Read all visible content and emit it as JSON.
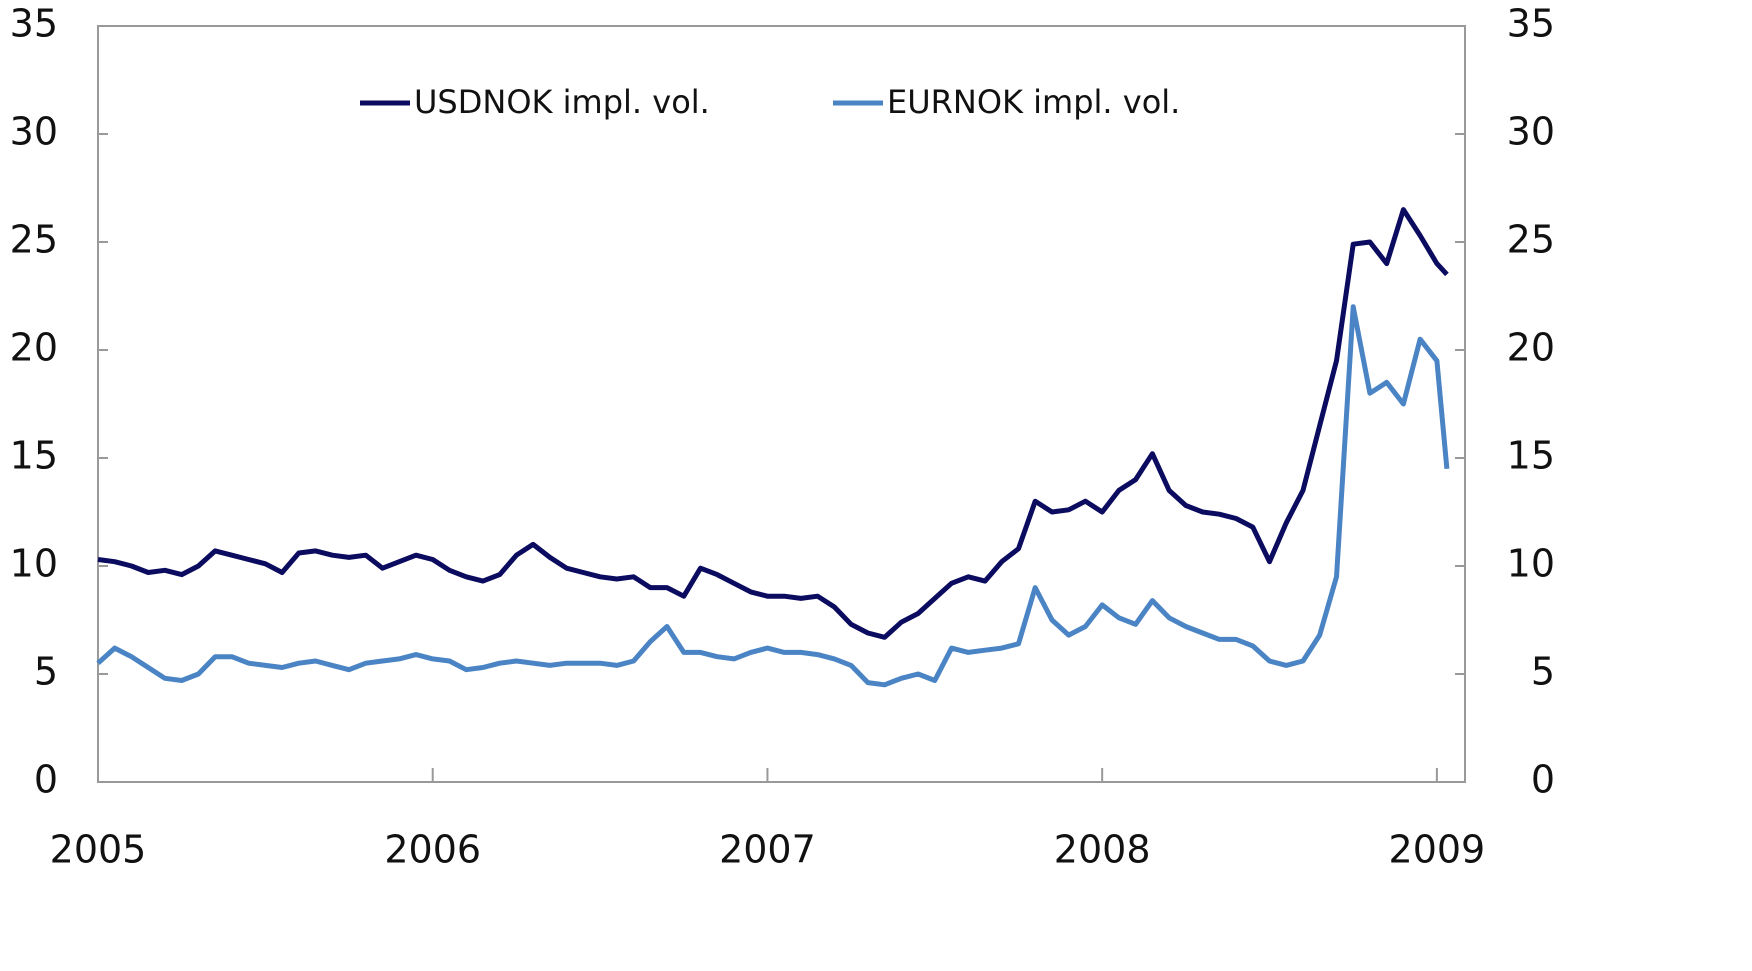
{
  "chart_data": {
    "type": "line",
    "x": [
      2005,
      2005.05,
      2005.1,
      2005.15,
      2005.2,
      2005.25,
      2005.3,
      2005.35,
      2005.4,
      2005.45,
      2005.5,
      2005.55,
      2005.6,
      2005.65,
      2005.7,
      2005.75,
      2005.8,
      2005.85,
      2005.9,
      2005.95,
      2006,
      2006.05,
      2006.1,
      2006.15,
      2006.2,
      2006.25,
      2006.3,
      2006.35,
      2006.4,
      2006.45,
      2006.5,
      2006.55,
      2006.6,
      2006.65,
      2006.7,
      2006.75,
      2006.8,
      2006.85,
      2006.9,
      2006.95,
      2007,
      2007.05,
      2007.1,
      2007.15,
      2007.2,
      2007.25,
      2007.3,
      2007.35,
      2007.4,
      2007.45,
      2007.5,
      2007.55,
      2007.6,
      2007.65,
      2007.7,
      2007.75,
      2007.8,
      2007.85,
      2007.9,
      2007.95,
      2008,
      2008.05,
      2008.1,
      2008.15,
      2008.2,
      2008.25,
      2008.3,
      2008.35,
      2008.4,
      2008.45,
      2008.5,
      2008.55,
      2008.6,
      2008.65,
      2008.7,
      2008.75,
      2008.8,
      2008.85,
      2008.9,
      2008.95,
      2009,
      2009.03
    ],
    "series": [
      {
        "name": "USDNOK impl. vol.",
        "color": "#0b0b5f",
        "values": [
          10.3,
          10.2,
          10.0,
          9.7,
          9.8,
          9.6,
          10.0,
          10.7,
          10.5,
          10.3,
          10.1,
          9.7,
          10.6,
          10.7,
          10.5,
          10.4,
          10.5,
          9.9,
          10.2,
          10.5,
          10.3,
          9.8,
          9.5,
          9.3,
          9.6,
          10.5,
          11.0,
          10.4,
          9.9,
          9.7,
          9.5,
          9.4,
          9.5,
          9.0,
          9.0,
          8.6,
          9.9,
          9.6,
          9.2,
          8.8,
          8.6,
          8.6,
          8.5,
          8.6,
          8.1,
          7.3,
          6.9,
          6.7,
          7.4,
          7.8,
          8.5,
          9.2,
          9.5,
          9.3,
          10.2,
          10.8,
          13.0,
          12.5,
          12.6,
          13.0,
          12.5,
          13.5,
          14.0,
          15.2,
          13.5,
          12.8,
          12.5,
          12.4,
          12.2,
          11.8,
          10.2,
          12.0,
          13.5,
          16.5,
          19.5,
          24.9,
          25.0,
          24.0,
          26.5,
          25.3,
          24.0,
          23.5
        ]
      },
      {
        "name": "EURNOK impl. vol.",
        "color": "#4a84c4",
        "values": [
          5.5,
          6.2,
          5.8,
          5.3,
          4.8,
          4.7,
          5.0,
          5.8,
          5.8,
          5.5,
          5.4,
          5.3,
          5.5,
          5.6,
          5.4,
          5.2,
          5.5,
          5.6,
          5.7,
          5.9,
          5.7,
          5.6,
          5.2,
          5.3,
          5.5,
          5.6,
          5.5,
          5.4,
          5.5,
          5.5,
          5.5,
          5.4,
          5.6,
          6.5,
          7.2,
          6.0,
          6.0,
          5.8,
          5.7,
          6.0,
          6.2,
          6.0,
          6.0,
          5.9,
          5.7,
          5.4,
          4.6,
          4.5,
          4.8,
          5.0,
          4.7,
          6.2,
          6.0,
          6.1,
          6.2,
          6.4,
          9.0,
          7.5,
          6.8,
          7.2,
          8.2,
          7.6,
          7.3,
          8.4,
          7.6,
          7.2,
          6.9,
          6.6,
          6.6,
          6.3,
          5.6,
          5.4,
          5.6,
          6.8,
          9.5,
          22.0,
          18.0,
          18.5,
          17.5,
          20.5,
          19.5,
          14.5
        ]
      }
    ],
    "xlim": [
      2005,
      2009.084
    ],
    "xticks": [
      2005,
      2006,
      2007,
      2008,
      2009
    ],
    "ylim": [
      0,
      35
    ],
    "yticks": [
      0,
      5,
      10,
      15,
      20,
      25,
      30,
      35
    ],
    "y2lim": [
      0,
      35
    ],
    "y2ticks": [
      0,
      5,
      10,
      15,
      20,
      25,
      30,
      35
    ],
    "legend": "top"
  }
}
